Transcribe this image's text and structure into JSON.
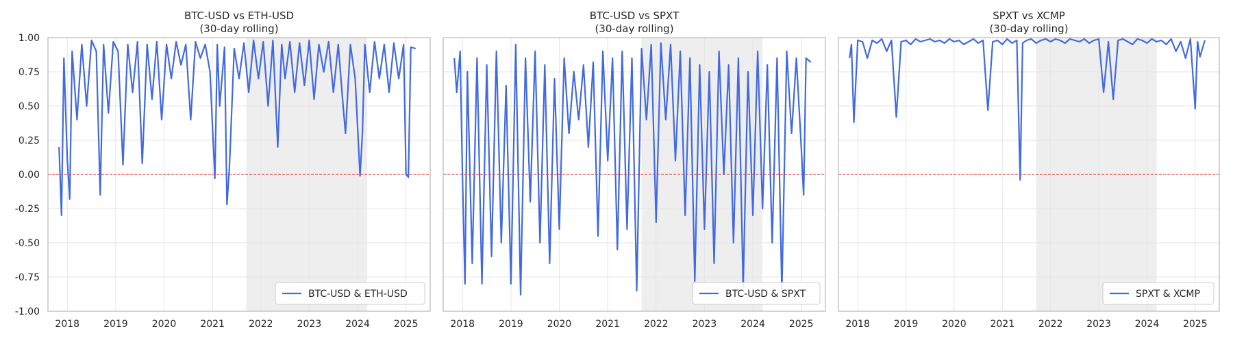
{
  "chart_data": [
    {
      "type": "line",
      "title": "BTC-USD vs ETH-USD",
      "subtitle": "(30-day rolling)",
      "legend": "BTC-USD & ETH-USD",
      "legend_position": "bottom-right",
      "ylim": [
        -1.0,
        1.0
      ],
      "show_yticklabels": true,
      "x": [
        2017.83,
        2017.88,
        2017.93,
        2018.0,
        2018.05,
        2018.1,
        2018.2,
        2018.3,
        2018.4,
        2018.5,
        2018.6,
        2018.68,
        2018.75,
        2018.85,
        2018.95,
        2019.05,
        2019.15,
        2019.25,
        2019.35,
        2019.45,
        2019.55,
        2019.65,
        2019.75,
        2019.85,
        2019.95,
        2020.05,
        2020.15,
        2020.25,
        2020.35,
        2020.45,
        2020.55,
        2020.65,
        2020.75,
        2020.85,
        2020.95,
        2021.05,
        2021.1,
        2021.15,
        2021.25,
        2021.3,
        2021.35,
        2021.45,
        2021.55,
        2021.65,
        2021.75,
        2021.85,
        2021.95,
        2022.05,
        2022.15,
        2022.25,
        2022.35,
        2022.43,
        2022.5,
        2022.6,
        2022.7,
        2022.8,
        2022.9,
        2023.0,
        2023.1,
        2023.2,
        2023.3,
        2023.4,
        2023.5,
        2023.6,
        2023.7,
        2023.75,
        2023.85,
        2023.95,
        2024.05,
        2024.1,
        2024.15,
        2024.25,
        2024.35,
        2024.45,
        2024.55,
        2024.65,
        2024.75,
        2024.85,
        2024.95,
        2025.0,
        2025.05,
        2025.1,
        2025.2
      ],
      "y": [
        0.2,
        -0.3,
        0.85,
        0.1,
        -0.18,
        0.9,
        0.4,
        0.95,
        0.5,
        0.98,
        0.9,
        -0.15,
        0.95,
        0.45,
        0.97,
        0.9,
        0.07,
        0.95,
        0.6,
        0.97,
        0.08,
        0.95,
        0.55,
        0.97,
        0.4,
        0.95,
        0.7,
        0.97,
        0.8,
        0.95,
        0.4,
        0.97,
        0.85,
        0.95,
        0.75,
        -0.03,
        0.95,
        0.5,
        0.93,
        -0.22,
        0.05,
        0.92,
        0.7,
        0.96,
        0.6,
        0.98,
        0.7,
        0.97,
        0.5,
        0.98,
        0.2,
        0.95,
        0.7,
        0.97,
        0.6,
        0.96,
        0.65,
        0.98,
        0.55,
        0.95,
        0.75,
        0.97,
        0.6,
        0.95,
        0.5,
        0.3,
        0.95,
        0.7,
        -0.01,
        0.3,
        0.95,
        0.6,
        0.97,
        0.7,
        0.95,
        0.6,
        0.96,
        0.7,
        0.95,
        0.0,
        -0.02,
        0.93,
        0.92
      ],
      "shaded_region": [
        2021.7,
        2024.2
      ],
      "reference_line": 0
    },
    {
      "type": "line",
      "title": "BTC-USD vs SPXT",
      "subtitle": "(30-day rolling)",
      "legend": "BTC-USD & SPXT",
      "legend_position": "bottom-right",
      "ylim": [
        -1.0,
        1.0
      ],
      "show_yticklabels": false,
      "x": [
        2017.83,
        2017.88,
        2017.95,
        2018.0,
        2018.05,
        2018.1,
        2018.2,
        2018.3,
        2018.4,
        2018.5,
        2018.6,
        2018.7,
        2018.8,
        2018.9,
        2019.0,
        2019.1,
        2019.2,
        2019.3,
        2019.4,
        2019.5,
        2019.6,
        2019.7,
        2019.8,
        2019.9,
        2020.0,
        2020.1,
        2020.2,
        2020.3,
        2020.4,
        2020.5,
        2020.6,
        2020.7,
        2020.8,
        2020.9,
        2021.0,
        2021.1,
        2021.2,
        2021.3,
        2021.4,
        2021.5,
        2021.6,
        2021.7,
        2021.8,
        2021.9,
        2022.0,
        2022.1,
        2022.2,
        2022.3,
        2022.4,
        2022.5,
        2022.6,
        2022.7,
        2022.8,
        2022.9,
        2023.0,
        2023.1,
        2023.2,
        2023.3,
        2023.4,
        2023.5,
        2023.6,
        2023.7,
        2023.8,
        2023.9,
        2024.0,
        2024.1,
        2024.2,
        2024.3,
        2024.4,
        2024.5,
        2024.6,
        2024.7,
        2024.8,
        2024.9,
        2025.0,
        2025.05,
        2025.1,
        2025.2
      ],
      "y": [
        0.85,
        0.6,
        0.9,
        -0.05,
        -0.8,
        0.75,
        -0.65,
        0.85,
        -0.8,
        0.8,
        -0.6,
        0.9,
        -0.5,
        0.65,
        -0.8,
        0.95,
        -0.88,
        0.85,
        -0.2,
        0.9,
        -0.5,
        0.8,
        -0.65,
        0.7,
        -0.4,
        0.85,
        0.3,
        0.75,
        0.4,
        0.8,
        0.2,
        0.82,
        -0.45,
        0.9,
        0.1,
        0.85,
        -0.55,
        0.9,
        -0.4,
        0.85,
        -0.85,
        0.92,
        0.4,
        0.95,
        -0.35,
        0.96,
        0.4,
        0.95,
        0.1,
        0.9,
        -0.3,
        0.85,
        -0.78,
        0.8,
        -0.4,
        0.75,
        -0.65,
        0.9,
        0.0,
        0.8,
        -0.5,
        0.85,
        -0.83,
        0.75,
        -0.3,
        0.9,
        -0.25,
        0.8,
        -0.5,
        0.85,
        -0.85,
        0.9,
        0.3,
        0.85,
        0.2,
        -0.15,
        0.85,
        0.82
      ],
      "shaded_region": [
        2021.7,
        2024.2
      ],
      "reference_line": 0
    },
    {
      "type": "line",
      "title": "SPXT vs XCMP",
      "subtitle": "(30-day rolling)",
      "legend": "SPXT & XCMP",
      "legend_position": "bottom-right",
      "ylim": [
        -1.0,
        1.0
      ],
      "show_yticklabels": false,
      "x": [
        2017.83,
        2017.87,
        2017.92,
        2018.0,
        2018.1,
        2018.2,
        2018.3,
        2018.4,
        2018.5,
        2018.6,
        2018.7,
        2018.8,
        2018.9,
        2019.0,
        2019.1,
        2019.2,
        2019.3,
        2019.4,
        2019.5,
        2019.6,
        2019.7,
        2019.8,
        2019.9,
        2020.0,
        2020.1,
        2020.2,
        2020.3,
        2020.4,
        2020.5,
        2020.6,
        2020.7,
        2020.8,
        2020.9,
        2021.0,
        2021.1,
        2021.2,
        2021.3,
        2021.37,
        2021.42,
        2021.5,
        2021.6,
        2021.7,
        2021.8,
        2021.9,
        2022.0,
        2022.1,
        2022.2,
        2022.3,
        2022.4,
        2022.5,
        2022.6,
        2022.7,
        2022.8,
        2022.9,
        2023.0,
        2023.1,
        2023.2,
        2023.3,
        2023.4,
        2023.5,
        2023.6,
        2023.7,
        2023.8,
        2023.9,
        2024.0,
        2024.1,
        2024.2,
        2024.3,
        2024.4,
        2024.5,
        2024.6,
        2024.7,
        2024.8,
        2024.9,
        2025.0,
        2025.05,
        2025.1,
        2025.2
      ],
      "y": [
        0.85,
        0.95,
        0.38,
        0.98,
        0.97,
        0.85,
        0.98,
        0.96,
        0.99,
        0.9,
        0.98,
        0.42,
        0.97,
        0.98,
        0.95,
        0.99,
        0.97,
        0.98,
        0.99,
        0.97,
        0.98,
        0.96,
        0.99,
        0.97,
        0.98,
        0.95,
        0.97,
        0.99,
        0.96,
        0.98,
        0.47,
        0.97,
        0.98,
        0.95,
        0.99,
        0.96,
        0.98,
        -0.04,
        0.96,
        0.98,
        0.99,
        0.96,
        0.98,
        0.99,
        0.97,
        0.99,
        0.98,
        0.96,
        0.99,
        0.98,
        0.97,
        0.99,
        0.96,
        0.98,
        0.99,
        0.6,
        0.97,
        0.55,
        0.98,
        0.99,
        0.97,
        0.95,
        0.99,
        0.98,
        0.96,
        0.99,
        0.97,
        0.98,
        0.95,
        0.99,
        0.9,
        0.97,
        0.85,
        0.99,
        0.48,
        0.97,
        0.86,
        0.98
      ],
      "shaded_region": [
        2021.7,
        2024.2
      ],
      "reference_line": 0
    }
  ],
  "x_tick_labels": [
    "2018",
    "2019",
    "2020",
    "2021",
    "2022",
    "2023",
    "2024",
    "2025"
  ],
  "y_tick_labels": [
    "1.00",
    "0.75",
    "0.50",
    "0.25",
    "0.00",
    "-0.25",
    "-0.50",
    "-0.75",
    "-1.00"
  ],
  "colors": {
    "line": "#4169e1",
    "reference": "#e02020",
    "shade": "#eeeeee",
    "grid": "#e6e6e6",
    "frame": "#b8b8b8"
  }
}
